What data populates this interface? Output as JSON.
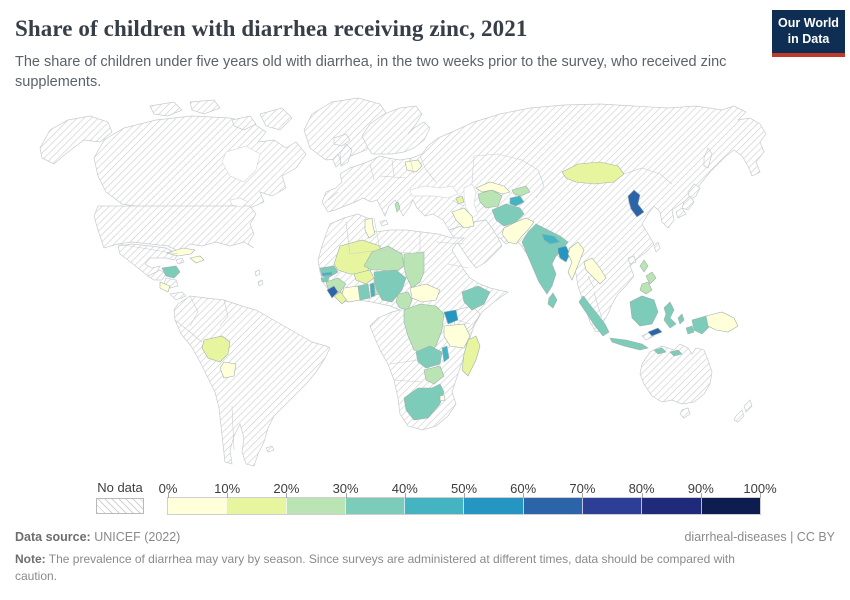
{
  "header": {
    "title": "Share of children with diarrhea receiving zinc, 2021",
    "subtitle": "The share of children under five years old with diarrhea, in the two weeks prior to the survey, who received zinc supplements.",
    "logo_line1": "Our World",
    "logo_line2": "in Data",
    "logo_bg": "#0e2e54",
    "logo_stripe": "#c0392b"
  },
  "legend": {
    "no_data_label": "No data",
    "tick_labels": [
      "0%",
      "10%",
      "20%",
      "30%",
      "40%",
      "50%",
      "60%",
      "70%",
      "80%",
      "90%",
      "100%"
    ],
    "colors": [
      "#ffffd9",
      "#e8f59f",
      "#bae4b3",
      "#7dcbb9",
      "#45b4c2",
      "#2596c1",
      "#2b64a9",
      "#2c3e96",
      "#1f2b7a",
      "#0d1d50"
    ]
  },
  "map_style": {
    "ocean": "#ffffff",
    "no_data_hatch_line": "#d2d2d2",
    "country_border": "#c6ccd0"
  },
  "footer": {
    "source_label": "Data source:",
    "source_value": " UNICEF (2022)",
    "rights": "diarrheal-diseases | CC BY",
    "note_label": "Note:",
    "note_text": " The prevalence of diarrhea may vary by season. Since surveys are administered at different times, data should be compared with caution."
  },
  "chart_data": {
    "type": "choropleth-map",
    "title": "Share of children with diarrhea receiving zinc",
    "year": "2021",
    "unit": "% of children under five with diarrhea who received zinc supplements",
    "bins": [
      "0-10%",
      "10-20%",
      "20-30%",
      "30-40%",
      "40-50%",
      "50-60%",
      "60-70%",
      "70-80%",
      "80-90%",
      "90-100%"
    ],
    "legend_no_data": "No data",
    "countries": {
      "cuba": {
        "name": "Cuba",
        "bin": 0,
        "value_range": "0-10%"
      },
      "haiti": {
        "name": "Haiti",
        "bin": 0,
        "value_range": "0-10%"
      },
      "honduras": {
        "name": "Honduras",
        "bin": 3,
        "value_range": "30-40%"
      },
      "costa-rica": {
        "name": "Costa Rica",
        "bin": 0,
        "value_range": "0-10%"
      },
      "bolivia": {
        "name": "Bolivia",
        "bin": 1,
        "value_range": "10-20%"
      },
      "paraguay": {
        "name": "Paraguay",
        "bin": 0,
        "value_range": "0-10%"
      },
      "belarus": {
        "name": "Belarus",
        "bin": 0,
        "value_range": "0-10%"
      },
      "albania": {
        "name": "Albania",
        "bin": 2,
        "value_range": "20-30%"
      },
      "tunisia": {
        "name": "Tunisia",
        "bin": 0,
        "value_range": "0-10%"
      },
      "senegal": {
        "name": "Senegal",
        "bin": 3,
        "value_range": "30-40%"
      },
      "gambia": {
        "name": "Gambia",
        "bin": 4,
        "value_range": "40-50%"
      },
      "guinea-bissau": {
        "name": "Guinea-Bissau",
        "bin": 3,
        "value_range": "30-40%"
      },
      "guinea": {
        "name": "Guinea",
        "bin": 2,
        "value_range": "20-30%"
      },
      "sierra-leone": {
        "name": "Sierra Leone",
        "bin": 6,
        "value_range": "60-70%"
      },
      "liberia": {
        "name": "Liberia",
        "bin": 1,
        "value_range": "10-20%"
      },
      "cote-divoire": {
        "name": "Cote d'Ivoire",
        "bin": 0,
        "value_range": "0-10%"
      },
      "mali": {
        "name": "Mali",
        "bin": 1,
        "value_range": "10-20%"
      },
      "burkina-faso": {
        "name": "Burkina Faso",
        "bin": 1,
        "value_range": "10-20%"
      },
      "ghana": {
        "name": "Ghana",
        "bin": 3,
        "value_range": "30-40%"
      },
      "togo": {
        "name": "Togo",
        "bin": 4,
        "value_range": "40-50%"
      },
      "benin": {
        "name": "Benin",
        "bin": 2,
        "value_range": "20-30%"
      },
      "niger": {
        "name": "Niger",
        "bin": 2,
        "value_range": "20-30%"
      },
      "nigeria": {
        "name": "Nigeria",
        "bin": 3,
        "value_range": "30-40%"
      },
      "chad": {
        "name": "Chad",
        "bin": 2,
        "value_range": "20-30%"
      },
      "cameroon": {
        "name": "Cameroon",
        "bin": 2,
        "value_range": "20-30%"
      },
      "central-african-republic": {
        "name": "Central African Republic",
        "bin": 0,
        "value_range": "0-10%"
      },
      "dr-congo": {
        "name": "Democratic Republic of Congo",
        "bin": 2,
        "value_range": "20-30%"
      },
      "uganda": {
        "name": "Uganda",
        "bin": 5,
        "value_range": "50-60%"
      },
      "ethiopia": {
        "name": "Ethiopia",
        "bin": 3,
        "value_range": "30-40%"
      },
      "tanzania": {
        "name": "Tanzania",
        "bin": 0,
        "value_range": "0-10%"
      },
      "zambia": {
        "name": "Zambia",
        "bin": 3,
        "value_range": "30-40%"
      },
      "malawi": {
        "name": "Malawi",
        "bin": 4,
        "value_range": "40-50%"
      },
      "zimbabwe": {
        "name": "Zimbabwe",
        "bin": 2,
        "value_range": "20-30%"
      },
      "south-africa": {
        "name": "South Africa",
        "bin": 3,
        "value_range": "30-40%"
      },
      "eswatini": {
        "name": "Eswatini",
        "bin": 0,
        "value_range": "0-10%"
      },
      "madagascar": {
        "name": "Madagascar",
        "bin": 1,
        "value_range": "10-20%"
      },
      "armenia": {
        "name": "Armenia",
        "bin": 1,
        "value_range": "10-20%"
      },
      "iraq": {
        "name": "Iraq",
        "bin": 0,
        "value_range": "0-10%"
      },
      "turkmenistan": {
        "name": "Turkmenistan",
        "bin": 2,
        "value_range": "20-30%"
      },
      "uzbekistan": {
        "name": "Uzbekistan",
        "bin": 0,
        "value_range": "0-10%"
      },
      "kyrgyzstan": {
        "name": "Kyrgyzstan",
        "bin": 2,
        "value_range": "20-30%"
      },
      "tajikistan": {
        "name": "Tajikistan",
        "bin": 4,
        "value_range": "40-50%"
      },
      "afghanistan": {
        "name": "Afghanistan",
        "bin": 3,
        "value_range": "30-40%"
      },
      "pakistan": {
        "name": "Pakistan",
        "bin": 0,
        "value_range": "0-10%"
      },
      "india": {
        "name": "India",
        "bin": 3,
        "value_range": "30-40%"
      },
      "nepal": {
        "name": "Nepal",
        "bin": 4,
        "value_range": "40-50%"
      },
      "bangladesh": {
        "name": "Bangladesh",
        "bin": 5,
        "value_range": "50-60%"
      },
      "myanmar": {
        "name": "Myanmar",
        "bin": 0,
        "value_range": "0-10%"
      },
      "laos": {
        "name": "Laos",
        "bin": 0,
        "value_range": "0-10%"
      },
      "mongolia": {
        "name": "Mongolia",
        "bin": 1,
        "value_range": "10-20%"
      },
      "north-korea": {
        "name": "North Korea",
        "bin": 6,
        "value_range": "60-70%"
      },
      "philippines": {
        "name": "Philippines",
        "bin": 2,
        "value_range": "20-30%"
      },
      "indonesia": {
        "name": "Indonesia",
        "bin": 3,
        "value_range": "30-40%"
      },
      "timor-leste": {
        "name": "Timor-Leste",
        "bin": 6,
        "value_range": "60-70%"
      },
      "papua-new-guinea": {
        "name": "Papua New Guinea",
        "bin": 0,
        "value_range": "0-10%"
      },
      "sri-lanka": {
        "name": "Sri Lanka",
        "bin": 3,
        "value_range": "30-40%"
      }
    }
  }
}
